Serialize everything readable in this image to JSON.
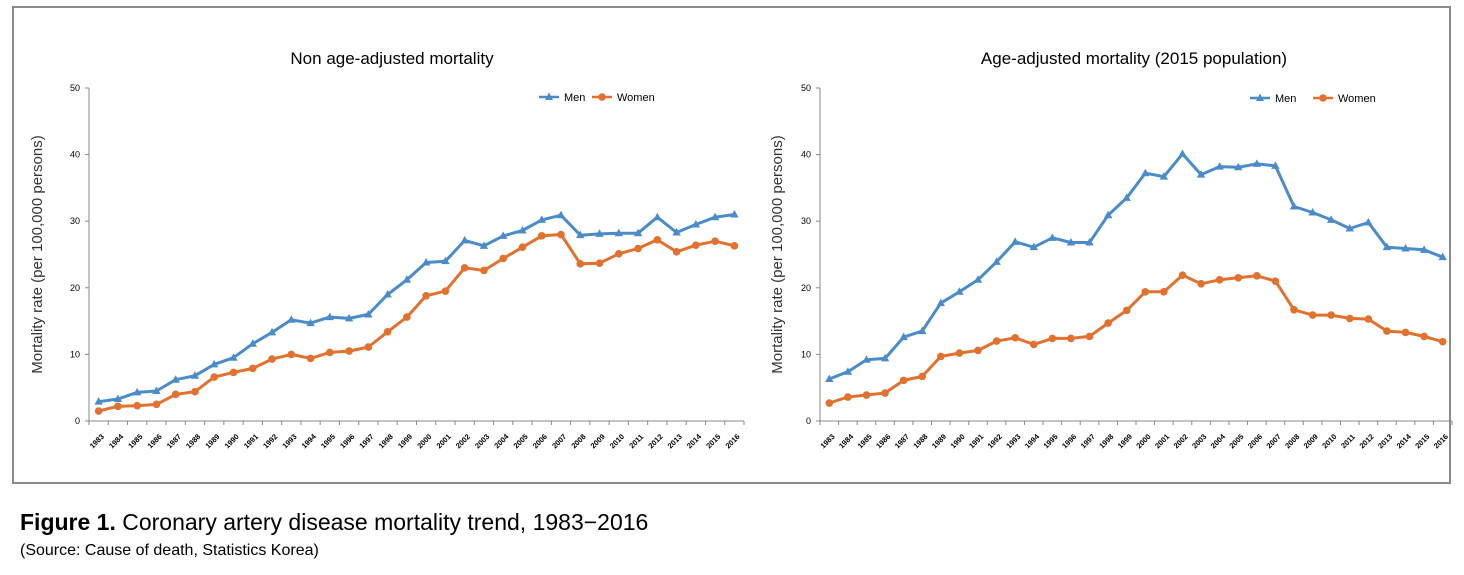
{
  "figure": {
    "label": "Figure 1.",
    "title": "Coronary artery disease mortality trend, 1983−2016",
    "source": "(Source: Cause of death, Statistics Korea)"
  },
  "colors": {
    "men": "#4a8bc8",
    "women": "#e2712f",
    "frame": "#8a8a8a",
    "axis": "#888888"
  },
  "chart_data": [
    {
      "type": "line",
      "title": "Non age-adjusted mortality",
      "ylabel": "Mortality rate (per 100,000 persons)",
      "xlabel": "",
      "ylim": [
        0,
        50
      ],
      "yticks": [
        0,
        10,
        20,
        30,
        40,
        50
      ],
      "legend": "top-right",
      "grid": false,
      "x": [
        "1983",
        "1984",
        "1985",
        "1986",
        "1987",
        "1988",
        "1989",
        "1990",
        "1991",
        "1992",
        "1993",
        "1994",
        "1995",
        "1996",
        "1997",
        "1998",
        "1999",
        "2000",
        "2001",
        "2002",
        "2003",
        "2004",
        "2005",
        "2006",
        "2007",
        "2008",
        "2009",
        "2010",
        "2011",
        "2012",
        "2013",
        "2014",
        "2015",
        "2016"
      ],
      "series": [
        {
          "name": "Men",
          "marker": "triangle",
          "values": [
            2.9,
            3.3,
            4.3,
            4.5,
            6.2,
            6.8,
            8.5,
            9.5,
            11.6,
            13.3,
            15.2,
            14.7,
            15.6,
            15.4,
            16.0,
            19.0,
            21.2,
            23.8,
            24.0,
            27.1,
            26.3,
            27.8,
            28.6,
            30.2,
            30.9,
            27.9,
            28.1,
            28.2,
            28.2,
            30.6,
            28.3,
            29.5,
            30.6,
            31.0
          ]
        },
        {
          "name": "Women",
          "marker": "circle",
          "values": [
            1.5,
            2.2,
            2.3,
            2.5,
            4.0,
            4.4,
            6.6,
            7.3,
            7.9,
            9.3,
            10.0,
            9.4,
            10.3,
            10.5,
            11.1,
            13.4,
            15.6,
            18.8,
            19.5,
            23.0,
            22.6,
            24.4,
            26.1,
            27.8,
            28.0,
            23.6,
            23.7,
            25.1,
            25.9,
            27.2,
            25.4,
            26.4,
            27.0,
            26.3
          ]
        }
      ]
    },
    {
      "type": "line",
      "title": "Age-adjusted mortality (2015 population)",
      "ylabel": "Mortality rate (per 100,000 persons)",
      "xlabel": "",
      "ylim": [
        0,
        50
      ],
      "yticks": [
        0,
        10,
        20,
        30,
        40,
        50
      ],
      "legend": "top-right",
      "grid": false,
      "x": [
        "1983",
        "1984",
        "1985",
        "1986",
        "1987",
        "1988",
        "1989",
        "1990",
        "1991",
        "1992",
        "1993",
        "1994",
        "1995",
        "1996",
        "1997",
        "1998",
        "1999",
        "2000",
        "2001",
        "2002",
        "2003",
        "2004",
        "2005",
        "2006",
        "2007",
        "2008",
        "2009",
        "2010",
        "2011",
        "2012",
        "2013",
        "2014",
        "2015",
        "2016"
      ],
      "series": [
        {
          "name": "Men",
          "marker": "triangle",
          "values": [
            6.3,
            7.4,
            9.2,
            9.4,
            12.6,
            13.5,
            17.7,
            19.4,
            21.2,
            23.9,
            26.9,
            26.1,
            27.5,
            26.8,
            26.8,
            30.9,
            33.5,
            37.2,
            36.7,
            40.1,
            37.0,
            38.2,
            38.1,
            38.6,
            38.3,
            32.2,
            31.3,
            30.2,
            28.9,
            29.8,
            26.1,
            25.9,
            25.7,
            24.6
          ]
        },
        {
          "name": "Women",
          "marker": "circle",
          "values": [
            2.7,
            3.6,
            3.9,
            4.2,
            6.1,
            6.7,
            9.7,
            10.2,
            10.6,
            12.0,
            12.5,
            11.5,
            12.4,
            12.4,
            12.7,
            14.7,
            16.6,
            19.4,
            19.4,
            21.9,
            20.6,
            21.2,
            21.5,
            21.8,
            21.0,
            16.7,
            15.9,
            15.9,
            15.4,
            15.3,
            13.5,
            13.3,
            12.7,
            11.9
          ]
        }
      ]
    }
  ]
}
